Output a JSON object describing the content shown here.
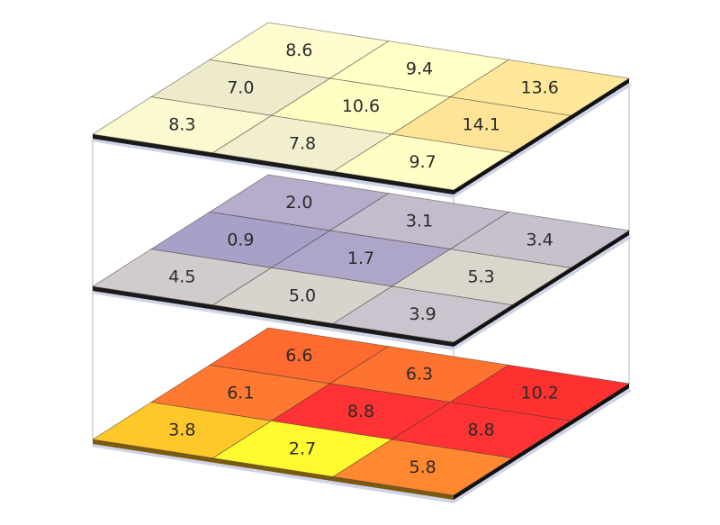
{
  "diagram": {
    "type": "stacked-grid-layers",
    "grid_size": [
      3,
      3
    ],
    "layers": [
      {
        "name": "top-layer",
        "theme": "yellow",
        "edge_color": "#1a1a1a",
        "cells": [
          [
            {
              "value": "8.6",
              "color": "#FFFCCF"
            },
            {
              "value": "9.4",
              "color": "#FFFFC6"
            },
            {
              "value": "13.6",
              "color": "#FFE89A"
            }
          ],
          [
            {
              "value": "7.0",
              "color": "#EEEACC"
            },
            {
              "value": "10.6",
              "color": "#FFFFC4"
            },
            {
              "value": "14.1",
              "color": "#FFE497"
            }
          ],
          [
            {
              "value": "8.3",
              "color": "#FBF9D0"
            },
            {
              "value": "7.8",
              "color": "#F2EFCF"
            },
            {
              "value": "9.7",
              "color": "#FFFFC5"
            }
          ]
        ]
      },
      {
        "name": "middle-layer",
        "theme": "purple-gray",
        "edge_color": "#1a1a1a",
        "cells": [
          [
            {
              "value": "2.0",
              "color": "#B5ADCB"
            },
            {
              "value": "3.1",
              "color": "#C2BCCD"
            },
            {
              "value": "3.4",
              "color": "#C7C1CD"
            }
          ],
          [
            {
              "value": "0.9",
              "color": "#A8A1C7"
            },
            {
              "value": "1.7",
              "color": "#AEA6C9"
            },
            {
              "value": "5.3",
              "color": "#DAD6CC"
            }
          ],
          [
            {
              "value": "4.5",
              "color": "#D1CBCC"
            },
            {
              "value": "5.0",
              "color": "#D8D4CD"
            },
            {
              "value": "3.9",
              "color": "#CAC4CE"
            }
          ]
        ]
      },
      {
        "name": "bottom-layer",
        "theme": "heat",
        "edge_color": "#7a5a10",
        "cells": [
          [
            {
              "value": "6.6",
              "color": "#FF6A30"
            },
            {
              "value": "6.3",
              "color": "#FF7330"
            },
            {
              "value": "10.2",
              "color": "#FF3030"
            }
          ],
          [
            {
              "value": "6.1",
              "color": "#FF7A30"
            },
            {
              "value": "8.8",
              "color": "#FF3333"
            },
            {
              "value": "8.8",
              "color": "#FF3333"
            }
          ],
          [
            {
              "value": "3.8",
              "color": "#FFC82A"
            },
            {
              "value": "2.7",
              "color": "#FFFA30"
            },
            {
              "value": "5.8",
              "color": "#FF8830"
            }
          ]
        ]
      }
    ],
    "guide_line_color": "#c0c0c0"
  }
}
